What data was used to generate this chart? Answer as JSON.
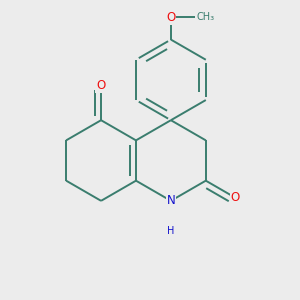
{
  "background_color": "#ececec",
  "bond_color": "#3a7d6e",
  "bond_width": 1.4,
  "atom_colors": {
    "O": "#ee1111",
    "N": "#1111cc",
    "C": "#3a7d6e"
  },
  "font_size_atom": 8.5,
  "font_size_h": 7.0,
  "dbo": 0.018
}
